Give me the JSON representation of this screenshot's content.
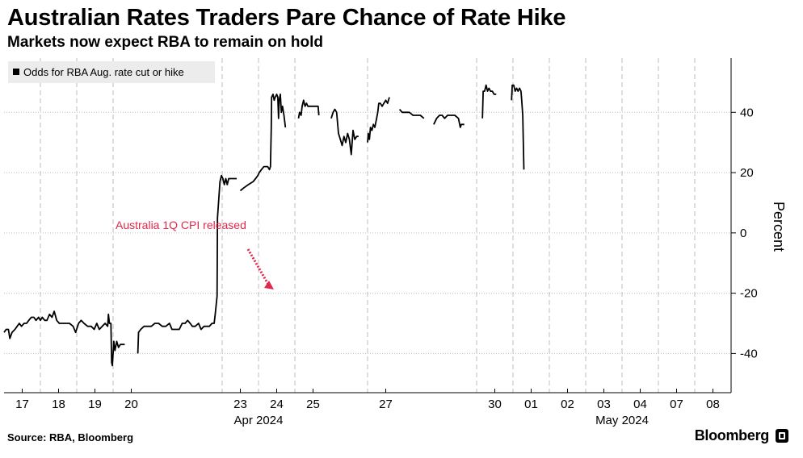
{
  "header": {
    "title": "Australian Rates Traders Pare Chance of Rate Hike",
    "subtitle": "Markets now expect RBA to remain on hold"
  },
  "footer": {
    "source": "Source: RBA, Bloomberg",
    "brand": "Bloomberg"
  },
  "colors": {
    "line": "#000000",
    "grid": "#bdbdbd",
    "annotation": "#e0284b",
    "legend_bg": "#ececec"
  },
  "chart_data": {
    "type": "line",
    "title": "Australian Rates Traders Pare Chance of Rate Hike",
    "subtitle": "Markets now expect RBA to remain on hold",
    "ylabel": "Percent",
    "ylim": [
      -53,
      58
    ],
    "yticks": [
      40,
      20,
      0,
      -20,
      -40
    ],
    "grid": true,
    "legend": {
      "position": "top-left",
      "entries": [
        "Odds for RBA Aug. rate cut or hike"
      ]
    },
    "annotation": {
      "text": "Australia 1Q CPI released",
      "x": 24.85,
      "y": -19
    },
    "x_ticks": [
      "17",
      "18",
      "19",
      "20",
      "23",
      "24",
      "25",
      "27",
      "30",
      "01",
      "02",
      "03",
      "04",
      "07",
      "08"
    ],
    "x_tick_positions": [
      17.5,
      18.5,
      19.5,
      20.5,
      23.5,
      24.5,
      25.5,
      27.5,
      30.5,
      31.5,
      32.5,
      33.5,
      34.5,
      35.5,
      36.5
    ],
    "x_groups": [
      {
        "label": "Apr 2024",
        "at": 24.0
      },
      {
        "label": "May 2024",
        "at": 34.0
      }
    ],
    "xlim": [
      17.0,
      37.0
    ],
    "series": [
      {
        "name": "Odds for RBA Aug. rate cut or hike",
        "segments": [
          [
            [
              17.0,
              -33
            ],
            [
              17.06,
              -32
            ],
            [
              17.12,
              -32
            ],
            [
              17.16,
              -35
            ],
            [
              17.22,
              -33
            ],
            [
              17.3,
              -32
            ],
            [
              17.36,
              -31
            ],
            [
              17.42,
              -30
            ],
            [
              17.48,
              -31
            ],
            [
              17.55,
              -30
            ],
            [
              17.62,
              -30
            ],
            [
              17.68,
              -29
            ],
            [
              17.75,
              -28
            ],
            [
              17.82,
              -28
            ],
            [
              17.88,
              -29
            ],
            [
              17.95,
              -28
            ],
            [
              18.0,
              -29
            ],
            [
              18.05,
              -28
            ],
            [
              18.12,
              -29
            ],
            [
              18.18,
              -29
            ],
            [
              18.25,
              -27
            ],
            [
              18.32,
              -28
            ],
            [
              18.38,
              -26
            ],
            [
              18.45,
              -29
            ],
            [
              18.52,
              -30
            ],
            [
              18.6,
              -30
            ],
            [
              18.7,
              -30
            ],
            [
              18.8,
              -30
            ],
            [
              18.9,
              -31
            ],
            [
              18.97,
              -33
            ],
            [
              19.05,
              -30
            ],
            [
              19.12,
              -29
            ],
            [
              19.2,
              -30
            ],
            [
              19.3,
              -31
            ],
            [
              19.4,
              -31
            ],
            [
              19.48,
              -32
            ],
            [
              19.55,
              -30
            ],
            [
              19.62,
              -32
            ],
            [
              19.7,
              -31
            ],
            [
              19.78,
              -30
            ],
            [
              19.85,
              -31
            ],
            [
              19.87,
              -27
            ],
            [
              19.9,
              -30
            ],
            [
              19.94,
              -30
            ],
            [
              19.96,
              -43
            ],
            [
              19.98,
              -44
            ],
            [
              20.02,
              -36
            ],
            [
              20.05,
              -39
            ],
            [
              20.1,
              -36
            ],
            [
              20.15,
              -38
            ],
            [
              20.2,
              -37
            ],
            [
              20.26,
              -37
            ],
            [
              20.32,
              -37
            ]
          ],
          [
            [
              20.68,
              -40
            ],
            [
              20.7,
              -33
            ],
            [
              20.76,
              -32
            ],
            [
              20.85,
              -31
            ],
            [
              20.95,
              -31
            ],
            [
              21.05,
              -31
            ],
            [
              21.15,
              -30
            ],
            [
              21.25,
              -30
            ],
            [
              21.35,
              -31
            ],
            [
              21.45,
              -31
            ],
            [
              21.55,
              -30
            ],
            [
              21.62,
              -32
            ],
            [
              21.72,
              -32
            ],
            [
              21.82,
              -32
            ],
            [
              21.9,
              -30
            ],
            [
              21.98,
              -30
            ],
            [
              22.05,
              -29
            ],
            [
              22.12,
              -30
            ],
            [
              22.18,
              -31
            ],
            [
              22.26,
              -31
            ],
            [
              22.35,
              -30
            ],
            [
              22.42,
              -32
            ],
            [
              22.5,
              -31
            ],
            [
              22.58,
              -31
            ],
            [
              22.65,
              -31
            ],
            [
              22.72,
              -30
            ],
            [
              22.78,
              -30
            ],
            [
              22.81,
              -27
            ],
            [
              22.86,
              -21
            ],
            [
              22.87,
              5
            ],
            [
              22.9,
              10
            ],
            [
              22.94,
              17
            ],
            [
              22.98,
              19
            ],
            [
              23.02,
              18
            ],
            [
              23.06,
              16
            ],
            [
              23.1,
              18
            ],
            [
              23.14,
              16
            ],
            [
              23.18,
              18
            ],
            [
              23.26,
              18
            ],
            [
              23.34,
              18
            ],
            [
              23.4,
              18
            ]
          ],
          [
            [
              23.5,
              14
            ],
            [
              23.6,
              15
            ],
            [
              23.72,
              16
            ],
            [
              23.85,
              17
            ],
            [
              23.92,
              18
            ],
            [
              23.98,
              19
            ],
            [
              24.02,
              20
            ],
            [
              24.08,
              21
            ],
            [
              24.15,
              22
            ],
            [
              24.25,
              22
            ],
            [
              24.3,
              21
            ],
            [
              24.33,
              22
            ],
            [
              24.35,
              35
            ],
            [
              24.36,
              45
            ],
            [
              24.4,
              46
            ],
            [
              24.43,
              44
            ],
            [
              24.46,
              45
            ],
            [
              24.5,
              46
            ],
            [
              24.53,
              45
            ],
            [
              24.55,
              38
            ],
            [
              24.57,
              44
            ],
            [
              24.6,
              46
            ],
            [
              24.63,
              40
            ],
            [
              24.66,
              42
            ],
            [
              24.7,
              39
            ],
            [
              24.74,
              35
            ]
          ],
          [
            [
              25.1,
              38
            ],
            [
              25.13,
              40
            ],
            [
              25.17,
              39
            ],
            [
              25.2,
              42
            ],
            [
              25.24,
              44
            ],
            [
              25.28,
              42
            ],
            [
              25.32,
              43
            ],
            [
              25.36,
              42
            ],
            [
              25.42,
              42
            ],
            [
              25.5,
              42
            ],
            [
              25.58,
              42
            ],
            [
              25.64,
              42
            ],
            [
              25.66,
              39
            ]
          ],
          [
            [
              26.0,
              38
            ],
            [
              26.05,
              40
            ],
            [
              26.1,
              41
            ],
            [
              26.15,
              40
            ],
            [
              26.2,
              33
            ],
            [
              26.25,
              31
            ],
            [
              26.3,
              29
            ],
            [
              26.35,
              32
            ],
            [
              26.4,
              30
            ],
            [
              26.45,
              33
            ],
            [
              26.5,
              31
            ],
            [
              26.55,
              26
            ],
            [
              26.6,
              34
            ],
            [
              26.65,
              31
            ],
            [
              26.7,
              32
            ],
            [
              26.75,
              32
            ]
          ],
          [
            [
              27.0,
              30
            ],
            [
              27.02,
              33
            ],
            [
              27.05,
              31
            ],
            [
              27.08,
              35
            ],
            [
              27.12,
              34
            ],
            [
              27.16,
              36
            ],
            [
              27.2,
              35
            ],
            [
              27.25,
              38
            ],
            [
              27.28,
              40
            ],
            [
              27.31,
              43
            ],
            [
              27.35,
              43
            ],
            [
              27.4,
              42
            ],
            [
              27.45,
              43
            ],
            [
              27.5,
              44
            ],
            [
              27.55,
              43
            ],
            [
              27.6,
              45
            ]
          ],
          [
            [
              27.88,
              41
            ],
            [
              27.95,
              40
            ],
            [
              28.05,
              40
            ],
            [
              28.15,
              40
            ],
            [
              28.25,
              39
            ],
            [
              28.35,
              39
            ],
            [
              28.45,
              39
            ],
            [
              28.55,
              38
            ]
          ],
          [
            [
              28.82,
              36
            ],
            [
              28.9,
              38
            ],
            [
              28.98,
              39
            ],
            [
              29.05,
              39
            ],
            [
              29.12,
              38
            ],
            [
              29.2,
              39
            ],
            [
              29.3,
              39
            ],
            [
              29.4,
              39
            ],
            [
              29.5,
              38
            ],
            [
              29.55,
              35
            ],
            [
              29.58,
              36
            ],
            [
              29.62,
              36
            ],
            [
              29.66,
              36
            ]
          ],
          [
            [
              30.16,
              38
            ],
            [
              30.18,
              47
            ],
            [
              30.22,
              47
            ],
            [
              30.26,
              49
            ],
            [
              30.3,
              47
            ],
            [
              30.34,
              48
            ],
            [
              30.38,
              47
            ],
            [
              30.43,
              47
            ],
            [
              30.48,
              46
            ],
            [
              30.54,
              46
            ]
          ],
          [
            [
              30.96,
              44
            ],
            [
              30.98,
              49
            ],
            [
              31.02,
              49
            ],
            [
              31.06,
              47
            ],
            [
              31.1,
              48
            ],
            [
              31.14,
              47
            ],
            [
              31.18,
              48
            ],
            [
              31.22,
              47
            ],
            [
              31.24,
              44
            ],
            [
              31.27,
              39
            ],
            [
              31.3,
              21
            ]
          ]
        ]
      }
    ]
  }
}
